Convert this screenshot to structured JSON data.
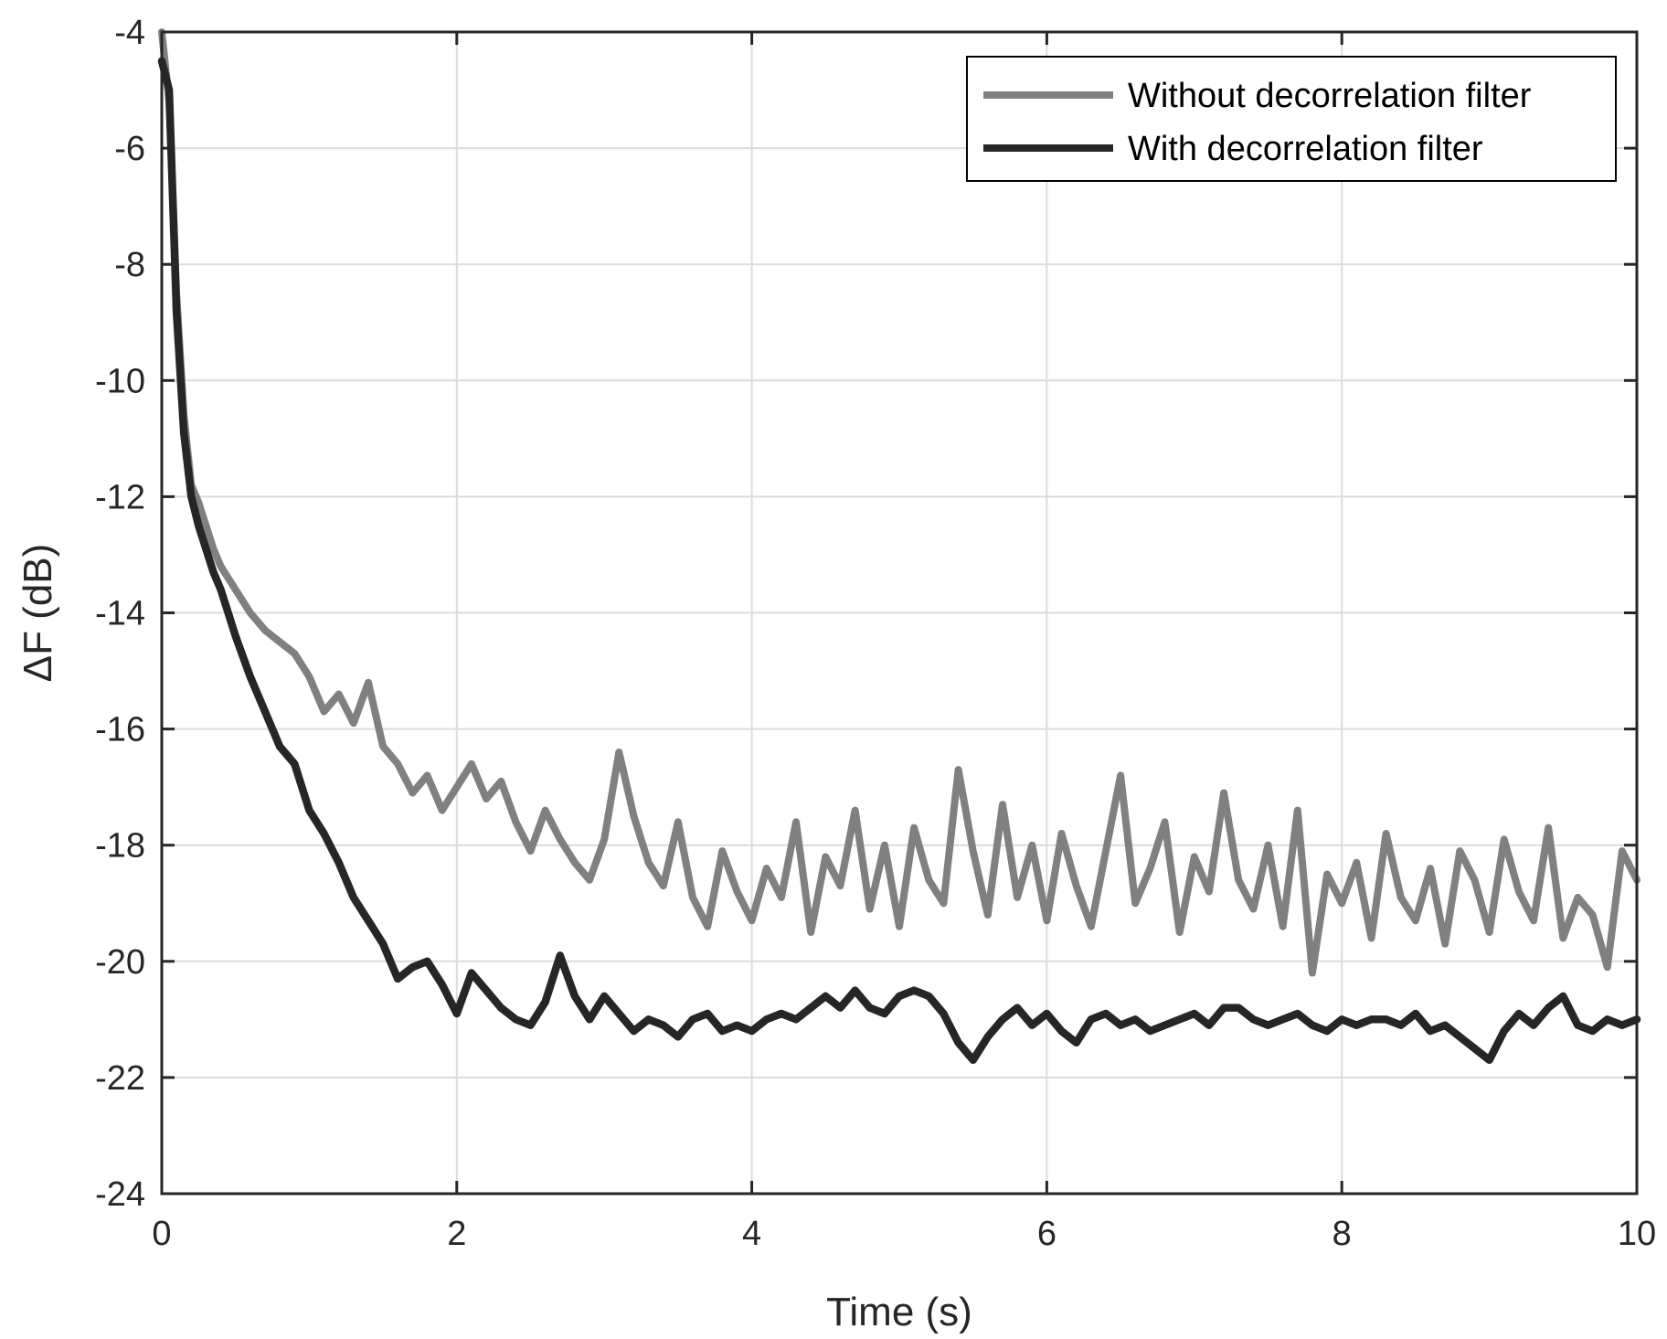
{
  "chart_data": {
    "type": "line",
    "title": "",
    "xlabel": "Time (s)",
    "ylabel": "ΔF (dB)",
    "xlim": [
      0,
      10
    ],
    "ylim": [
      -24,
      -4
    ],
    "xticks": [
      0,
      2,
      4,
      6,
      8,
      10
    ],
    "yticks": [
      -24,
      -22,
      -20,
      -18,
      -16,
      -14,
      -12,
      -10,
      -8,
      -6,
      -4
    ],
    "xtick_labels": [
      "0",
      "2",
      "4",
      "6",
      "8",
      "10"
    ],
    "ytick_labels": [
      "-24",
      "-22",
      "-20",
      "-18",
      "-16",
      "-14",
      "-12",
      "-10",
      "-8",
      "-6",
      "-4"
    ],
    "grid": true,
    "legend_position": "top-right",
    "series": [
      {
        "name": "Without decorrelation filter",
        "color": "#808080",
        "x": [
          0.0,
          0.05,
          0.1,
          0.15,
          0.2,
          0.25,
          0.3,
          0.35,
          0.4,
          0.5,
          0.6,
          0.7,
          0.8,
          0.9,
          1.0,
          1.1,
          1.2,
          1.3,
          1.4,
          1.5,
          1.6,
          1.7,
          1.8,
          1.9,
          2.0,
          2.1,
          2.2,
          2.3,
          2.4,
          2.5,
          2.6,
          2.7,
          2.8,
          2.9,
          3.0,
          3.1,
          3.2,
          3.3,
          3.4,
          3.5,
          3.6,
          3.7,
          3.8,
          3.9,
          4.0,
          4.1,
          4.2,
          4.3,
          4.4,
          4.5,
          4.6,
          4.7,
          4.8,
          4.9,
          5.0,
          5.1,
          5.2,
          5.3,
          5.4,
          5.5,
          5.6,
          5.7,
          5.8,
          5.9,
          6.0,
          6.1,
          6.2,
          6.3,
          6.4,
          6.5,
          6.6,
          6.7,
          6.8,
          6.9,
          7.0,
          7.1,
          7.2,
          7.3,
          7.4,
          7.5,
          7.6,
          7.7,
          7.8,
          7.9,
          8.0,
          8.1,
          8.2,
          8.3,
          8.4,
          8.5,
          8.6,
          8.7,
          8.8,
          8.9,
          9.0,
          9.1,
          9.2,
          9.3,
          9.4,
          9.5,
          9.6,
          9.7,
          9.8,
          9.9,
          10.0
        ],
        "y": [
          -4.0,
          -5.2,
          -8.5,
          -10.6,
          -11.8,
          -12.1,
          -12.5,
          -12.9,
          -13.2,
          -13.6,
          -14.0,
          -14.3,
          -14.5,
          -14.7,
          -15.1,
          -15.7,
          -15.4,
          -15.9,
          -15.2,
          -16.3,
          -16.6,
          -17.1,
          -16.8,
          -17.4,
          -17.0,
          -16.6,
          -17.2,
          -16.9,
          -17.6,
          -18.1,
          -17.4,
          -17.9,
          -18.3,
          -18.6,
          -17.9,
          -16.4,
          -17.5,
          -18.3,
          -18.7,
          -17.6,
          -18.9,
          -19.4,
          -18.1,
          -18.8,
          -19.3,
          -18.4,
          -18.9,
          -17.6,
          -19.5,
          -18.2,
          -18.7,
          -17.4,
          -19.1,
          -18.0,
          -19.4,
          -17.7,
          -18.6,
          -19.0,
          -16.7,
          -18.1,
          -19.2,
          -17.3,
          -18.9,
          -18.0,
          -19.3,
          -17.8,
          -18.7,
          -19.4,
          -18.1,
          -16.8,
          -19.0,
          -18.4,
          -17.6,
          -19.5,
          -18.2,
          -18.8,
          -17.1,
          -18.6,
          -19.1,
          -18.0,
          -19.4,
          -17.4,
          -20.2,
          -18.5,
          -19.0,
          -18.3,
          -19.6,
          -17.8,
          -18.9,
          -19.3,
          -18.4,
          -19.7,
          -18.1,
          -18.6,
          -19.5,
          -17.9,
          -18.8,
          -19.3,
          -17.7,
          -19.6,
          -18.9,
          -19.2,
          -20.1,
          -18.1,
          -18.6
        ]
      },
      {
        "name": "With decorrelation filter",
        "color": "#262626",
        "x": [
          0.0,
          0.05,
          0.1,
          0.15,
          0.2,
          0.25,
          0.3,
          0.35,
          0.4,
          0.5,
          0.6,
          0.7,
          0.8,
          0.9,
          1.0,
          1.1,
          1.2,
          1.3,
          1.4,
          1.5,
          1.6,
          1.7,
          1.8,
          1.9,
          2.0,
          2.1,
          2.2,
          2.3,
          2.4,
          2.5,
          2.6,
          2.7,
          2.8,
          2.9,
          3.0,
          3.1,
          3.2,
          3.3,
          3.4,
          3.5,
          3.6,
          3.7,
          3.8,
          3.9,
          4.0,
          4.1,
          4.2,
          4.3,
          4.4,
          4.5,
          4.6,
          4.7,
          4.8,
          4.9,
          5.0,
          5.1,
          5.2,
          5.3,
          5.4,
          5.5,
          5.6,
          5.7,
          5.8,
          5.9,
          6.0,
          6.1,
          6.2,
          6.3,
          6.4,
          6.5,
          6.6,
          6.7,
          6.8,
          6.9,
          7.0,
          7.1,
          7.2,
          7.3,
          7.4,
          7.5,
          7.6,
          7.7,
          7.8,
          7.9,
          8.0,
          8.1,
          8.2,
          8.3,
          8.4,
          8.5,
          8.6,
          8.7,
          8.8,
          8.9,
          9.0,
          9.1,
          9.2,
          9.3,
          9.4,
          9.5,
          9.6,
          9.7,
          9.8,
          9.9,
          10.0
        ],
        "y": [
          -4.5,
          -5.0,
          -8.8,
          -10.9,
          -12.0,
          -12.5,
          -12.9,
          -13.3,
          -13.6,
          -14.4,
          -15.1,
          -15.7,
          -16.3,
          -16.6,
          -17.4,
          -17.8,
          -18.3,
          -18.9,
          -19.3,
          -19.7,
          -20.3,
          -20.1,
          -20.0,
          -20.4,
          -20.9,
          -20.2,
          -20.5,
          -20.8,
          -21.0,
          -21.1,
          -20.7,
          -19.9,
          -20.6,
          -21.0,
          -20.6,
          -20.9,
          -21.2,
          -21.0,
          -21.1,
          -21.3,
          -21.0,
          -20.9,
          -21.2,
          -21.1,
          -21.2,
          -21.0,
          -20.9,
          -21.0,
          -20.8,
          -20.6,
          -20.8,
          -20.5,
          -20.8,
          -20.9,
          -20.6,
          -20.5,
          -20.6,
          -20.9,
          -21.4,
          -21.7,
          -21.3,
          -21.0,
          -20.8,
          -21.1,
          -20.9,
          -21.2,
          -21.4,
          -21.0,
          -20.9,
          -21.1,
          -21.0,
          -21.2,
          -21.1,
          -21.0,
          -20.9,
          -21.1,
          -20.8,
          -20.8,
          -21.0,
          -21.1,
          -21.0,
          -20.9,
          -21.1,
          -21.2,
          -21.0,
          -21.1,
          -21.0,
          -21.0,
          -21.1,
          -20.9,
          -21.2,
          -21.1,
          -21.3,
          -21.5,
          -21.7,
          -21.2,
          -20.9,
          -21.1,
          -20.8,
          -20.6,
          -21.1,
          -21.2,
          -21.0,
          -21.1,
          -21.0
        ]
      }
    ]
  }
}
